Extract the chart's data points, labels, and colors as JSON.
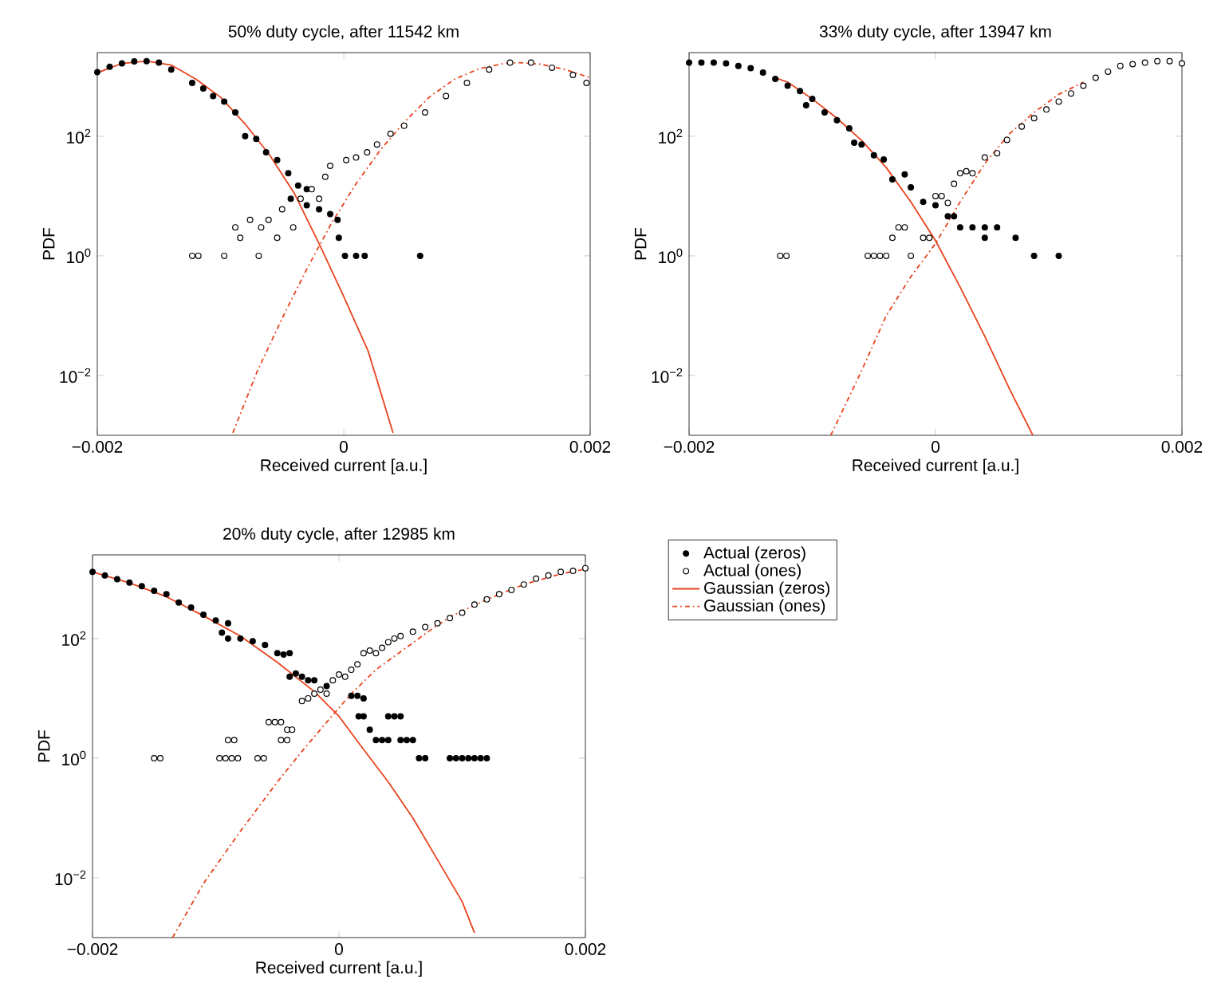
{
  "chart_data": [
    {
      "type": "scatter",
      "title": "50% duty cycle, after 11542 km",
      "xlabel": "Received current  [a.u.]",
      "ylabel": "PDF",
      "log": "y",
      "xlim": [
        -0.002,
        0.002
      ],
      "ylim": [
        0.001,
        2500
      ],
      "xticks": [
        {
          "value": -0.002,
          "label": "−0.002"
        },
        {
          "value": 0,
          "label": "0"
        },
        {
          "value": 0.002,
          "label": "0.002"
        }
      ],
      "yticks": [
        {
          "value": 0.01,
          "label": "10$^{−2}$"
        },
        {
          "value": 1,
          "label": "10$^{0}$"
        },
        {
          "value": 100,
          "label": "10$^{2}$"
        }
      ],
      "series": [
        {
          "type": "scatter",
          "marker": "circle",
          "color": "#000000",
          "x": [
            -0.002,
            -0.0019,
            -0.0018,
            -0.0017,
            -0.0016,
            -0.0015,
            -0.0014,
            -0.00123,
            -0.00114,
            -0.00106,
            -0.00097,
            -0.00088,
            -0.0008,
            -0.00071,
            -0.00063,
            -0.00054,
            -0.00045,
            -0.00037,
            -0.0003,
            -0.00043,
            -0.0003,
            -0.0002,
            -0.00011,
            -5e-05,
            -4e-05,
            1e-05,
            0.0001,
            0.00017,
            0.00062
          ],
          "values": [
            1180,
            1450,
            1650,
            1780,
            1800,
            1700,
            1300,
            780,
            630,
            470,
            380,
            250,
            100,
            90,
            54,
            40,
            24,
            15,
            13,
            9,
            7,
            6,
            5,
            4,
            2,
            1,
            1,
            1,
            1
          ]
        },
        {
          "type": "scatter",
          "marker": "circle",
          "color": "#000000",
          "x": [
            -0.00123,
            -0.00118,
            -0.00097,
            -0.00069,
            -0.00088,
            -0.00084,
            -0.00076,
            -0.00067,
            -0.00061,
            -0.00054,
            -0.0005,
            -0.00041,
            -0.00035,
            -0.00026,
            -0.0002,
            -0.00015,
            -0.00011,
            2e-05,
            0.0001,
            0.00019,
            0.00027,
            0.00038,
            0.00049,
            0.00066,
            0.00083,
            0.001,
            0.00118,
            0.00135,
            0.00152,
            0.00169,
            0.00186,
            0.00197
          ],
          "values": [
            1,
            1,
            1,
            1,
            3,
            2,
            4,
            3,
            4,
            2,
            6,
            3,
            9,
            13,
            9,
            21,
            32,
            40,
            44,
            54,
            73,
            110,
            150,
            250,
            470,
            780,
            1300,
            1700,
            1700,
            1400,
            1060,
            780
          ]
        },
        {
          "type": "line",
          "line_style": "solid",
          "color": "#e8431e",
          "x": [
            -0.002,
            -0.0018,
            -0.0016,
            -0.0014,
            -0.0012,
            -0.001,
            -0.0008,
            -0.0006,
            -0.0004,
            -0.0002,
            0,
            0.0002,
            0.0004
          ],
          "values": [
            1150,
            1650,
            1800,
            1550,
            900,
            450,
            160,
            48,
            11,
            1.6,
            0.21,
            0.025,
            0.0011
          ]
        },
        {
          "type": "line",
          "line_style": "dashed",
          "color": "#e8431e",
          "x": [
            -0.0009,
            -0.0007,
            -0.0005,
            -0.0003,
            -0.0001,
            0.0001,
            0.0003,
            0.0005,
            0.0007,
            0.0009,
            0.0011,
            0.0013,
            0.00143,
            0.0016,
            0.0018,
            0.002
          ],
          "values": [
            0.0011,
            0.012,
            0.09,
            0.6,
            3.5,
            16,
            60,
            180,
            460,
            900,
            1350,
            1650,
            1700,
            1600,
            1300,
            950
          ]
        }
      ]
    },
    {
      "type": "scatter",
      "title": "33% duty cycle, after 13947 km",
      "xlabel": "Received current  [a.u.]",
      "ylabel": "PDF",
      "log": "y",
      "xlim": [
        -0.002,
        0.002
      ],
      "ylim": [
        0.001,
        2500
      ],
      "xticks": [
        {
          "value": -0.002,
          "label": "−0.002"
        },
        {
          "value": 0,
          "label": "0"
        },
        {
          "value": 0.002,
          "label": "0.002"
        }
      ],
      "yticks": [
        {
          "value": 0.01,
          "label": "10$^{−2}$"
        },
        {
          "value": 1,
          "label": "10$^{0}$"
        },
        {
          "value": 100,
          "label": "10$^{2}$"
        }
      ],
      "series": [
        {
          "type": "scatter",
          "marker": "circle",
          "color": "#000000",
          "x": [
            -0.002,
            -0.0019,
            -0.0018,
            -0.0017,
            -0.0016,
            -0.0015,
            -0.0014,
            -0.0013,
            -0.0012,
            -0.0011,
            -0.00105,
            -0.001,
            -0.0009,
            -0.0008,
            -0.0007,
            -0.00066,
            -0.0006,
            -0.0005,
            -0.00042,
            -0.00035,
            -0.00025,
            -0.0002,
            -0.0001,
            0,
            0.0001,
            0.00015,
            0.0002,
            0.0003,
            0.0004,
            0.0005,
            0.0004,
            0.00065,
            0.0008,
            0.001
          ],
          "values": [
            1700,
            1700,
            1700,
            1650,
            1500,
            1370,
            1160,
            910,
            700,
            570,
            330,
            420,
            250,
            185,
            135,
            78,
            73,
            48,
            41,
            19,
            23,
            14,
            8,
            7,
            4.6,
            4.6,
            3,
            3,
            3,
            3,
            2,
            2,
            1,
            1
          ]
        },
        {
          "type": "scatter",
          "marker": "circle",
          "color": "#000000",
          "x": [
            -0.00126,
            -0.00121,
            -0.00055,
            -0.0005,
            -0.00045,
            -0.0004,
            -0.0002,
            -0.00035,
            -0.0003,
            -0.00025,
            -0.0001,
            -5e-05,
            0,
            5e-05,
            0.0001,
            0.00015,
            0.0002,
            0.00025,
            0.0003,
            0.0004,
            0.0005,
            0.00058,
            0.0007,
            0.0008,
            0.0009,
            0.001,
            0.0011,
            0.0012,
            0.0013,
            0.0014,
            0.0015,
            0.0016,
            0.0017,
            0.0018,
            0.0019,
            0.002
          ],
          "values": [
            1,
            1,
            1,
            1,
            1,
            1,
            1,
            2,
            3,
            3,
            2,
            2,
            10,
            10,
            7.7,
            16,
            24,
            26,
            24,
            44,
            52,
            87,
            145,
            200,
            280,
            380,
            520,
            700,
            950,
            1200,
            1500,
            1600,
            1700,
            1800,
            1800,
            1650
          ]
        },
        {
          "type": "line",
          "line_style": "solid",
          "color": "#e8431e",
          "x": [
            -0.0013,
            -0.0012,
            -0.001,
            -0.0008,
            -0.0006,
            -0.0004,
            -0.0002,
            0,
            0.0002,
            0.0004,
            0.0006,
            0.00079
          ],
          "values": [
            950,
            800,
            420,
            200,
            85,
            30,
            8,
            1.8,
            0.3,
            0.045,
            0.006,
            0.001
          ]
        },
        {
          "type": "line",
          "line_style": "dashed",
          "color": "#e8431e",
          "x": [
            -0.00085,
            -0.0006,
            -0.0004,
            -0.0002,
            0,
            0.0002,
            0.0004,
            0.0006,
            0.0008,
            0.001,
            0.0012
          ],
          "values": [
            0.001,
            0.012,
            0.1,
            0.45,
            1.6,
            8,
            35,
            110,
            250,
            500,
            800
          ]
        }
      ]
    },
    {
      "type": "scatter",
      "title": "20% duty cycle, after 12985 km",
      "xlabel": "Received current  [a.u.]",
      "ylabel": "PDF",
      "log": "y",
      "legend": "right",
      "xlim": [
        -0.002,
        0.002
      ],
      "ylim": [
        0.001,
        2500
      ],
      "xticks": [
        {
          "value": -0.002,
          "label": "−0.002"
        },
        {
          "value": 0,
          "label": "0"
        },
        {
          "value": 0.002,
          "label": "0.002"
        }
      ],
      "yticks": [
        {
          "value": 0.01,
          "label": "10$^{−2}$"
        },
        {
          "value": 1,
          "label": "10$^{0}$"
        },
        {
          "value": 100,
          "label": "10$^{2}$"
        }
      ],
      "series": [
        {
          "name": "Actual (zeros)",
          "type": "scatter",
          "marker": "circle",
          "color": "#000000",
          "x": [
            -0.002,
            -0.0019,
            -0.0018,
            -0.0017,
            -0.0016,
            -0.0015,
            -0.0014,
            -0.0013,
            -0.0012,
            -0.0011,
            -0.001,
            -0.0009,
            -0.00095,
            -0.0009,
            -0.0008,
            -0.0007,
            -0.0006,
            -0.0005,
            -0.00045,
            -0.0004,
            -0.0004,
            -0.00035,
            -0.0003,
            -0.00025,
            -0.0002,
            -0.0001,
            0.0001,
            0.00015,
            0.0002,
            0.00016,
            0.0002,
            0.00025,
            0.0003,
            0.00035,
            0.0004,
            0.0004,
            0.00045,
            0.0005,
            0.0005,
            0.00055,
            0.0006,
            0.00065,
            0.0007,
            0.0009,
            0.00095,
            0.001,
            0.00105,
            0.0011,
            0.00115,
            0.0012
          ],
          "values": [
            1300,
            1130,
            980,
            860,
            750,
            630,
            550,
            400,
            330,
            250,
            200,
            180,
            125,
            100,
            100,
            90,
            78,
            57,
            54,
            57,
            23,
            26,
            23,
            20,
            20,
            16,
            11,
            11,
            10,
            5,
            5,
            3,
            2,
            2,
            2,
            5,
            5,
            5,
            2,
            2,
            2,
            1,
            1,
            1,
            1,
            1,
            1,
            1,
            1,
            1
          ]
        },
        {
          "name": "Actual (ones)",
          "type": "scatter",
          "marker": "circle",
          "color": "#000000",
          "x": [
            -0.0015,
            -0.00145,
            -0.00097,
            -0.00092,
            -0.00087,
            -0.00082,
            -0.00066,
            -0.00061,
            -0.0009,
            -0.00085,
            -0.00057,
            -0.00052,
            -0.00047,
            -0.00042,
            -0.00038,
            -0.00047,
            -0.00042,
            -0.0003,
            -0.00025,
            -0.0002,
            -0.00015,
            -0.0001,
            -5e-05,
            0,
            5e-05,
            0.0001,
            0.00015,
            0.0002,
            0.00025,
            0.0003,
            0.00035,
            0.0004,
            0.00045,
            0.0005,
            0.0006,
            0.0007,
            0.0008,
            0.0009,
            0.001,
            0.0011,
            0.0012,
            0.0013,
            0.0014,
            0.0015,
            0.0016,
            0.0017,
            0.0018,
            0.0019,
            0.002
          ],
          "values": [
            1,
            1,
            1,
            1,
            1,
            1,
            1,
            1,
            2,
            2,
            4,
            4,
            4,
            3,
            3,
            2,
            2,
            9,
            10,
            12,
            14,
            12,
            20,
            25,
            23,
            30,
            37,
            57,
            63,
            57,
            70,
            87,
            100,
            110,
            130,
            155,
            180,
            220,
            270,
            370,
            450,
            550,
            650,
            800,
            1000,
            1130,
            1300,
            1350,
            1500
          ]
        },
        {
          "name": "Gaussian (zeros)",
          "type": "line",
          "line_style": "solid",
          "color": "#e8431e",
          "x": [
            -0.002,
            -0.0017,
            -0.0014,
            -0.0011,
            -0.0008,
            -0.0005,
            -0.0002,
            0,
            0.0002,
            0.0004,
            0.0006,
            0.0008,
            0.001,
            0.0011
          ],
          "values": [
            1300,
            850,
            500,
            240,
            110,
            40,
            13,
            5,
            1.4,
            0.4,
            0.1,
            0.02,
            0.004,
            0.0012
          ]
        },
        {
          "name": "Gaussian (ones)",
          "type": "line",
          "line_style": "dashed",
          "color": "#e8431e",
          "x": [
            -0.00135,
            -0.0011,
            -0.0008,
            -0.0005,
            -0.0003,
            -0.0001,
            0.0001,
            0.0003,
            0.0005,
            0.0007,
            0.0009,
            0.0012,
            0.0015,
            0.0018,
            0.002
          ],
          "values": [
            0.001,
            0.008,
            0.06,
            0.4,
            1.3,
            4,
            12,
            30,
            60,
            120,
            230,
            450,
            800,
            1200,
            1450
          ]
        }
      ]
    }
  ]
}
